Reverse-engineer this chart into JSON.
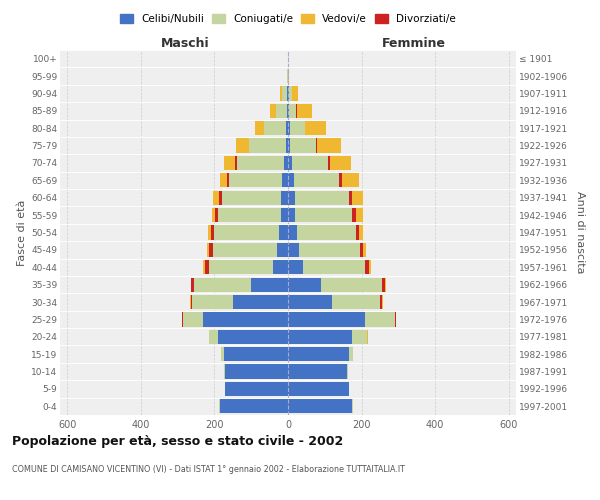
{
  "age_groups": [
    "0-4",
    "5-9",
    "10-14",
    "15-19",
    "20-24",
    "25-29",
    "30-34",
    "35-39",
    "40-44",
    "45-49",
    "50-54",
    "55-59",
    "60-64",
    "65-69",
    "70-74",
    "75-79",
    "80-84",
    "85-89",
    "90-94",
    "95-99",
    "100+"
  ],
  "birth_years": [
    "1997-2001",
    "1992-1996",
    "1987-1991",
    "1982-1986",
    "1977-1981",
    "1972-1976",
    "1967-1971",
    "1962-1966",
    "1957-1961",
    "1952-1956",
    "1947-1951",
    "1942-1946",
    "1937-1941",
    "1932-1936",
    "1927-1931",
    "1922-1926",
    "1917-1921",
    "1912-1916",
    "1907-1911",
    "1902-1906",
    "≤ 1901"
  ],
  "males_celibe": [
    185,
    170,
    170,
    175,
    190,
    230,
    150,
    100,
    40,
    30,
    25,
    20,
    20,
    15,
    10,
    5,
    5,
    3,
    2,
    0,
    0
  ],
  "males_coniugato": [
    2,
    2,
    3,
    8,
    25,
    55,
    110,
    155,
    175,
    175,
    175,
    170,
    160,
    145,
    130,
    100,
    60,
    30,
    15,
    2,
    0
  ],
  "males_vedovo": [
    0,
    0,
    0,
    0,
    0,
    1,
    1,
    2,
    3,
    5,
    8,
    10,
    15,
    20,
    30,
    35,
    25,
    15,
    6,
    1,
    0
  ],
  "males_divorziato": [
    0,
    0,
    0,
    0,
    1,
    3,
    5,
    8,
    12,
    10,
    10,
    8,
    8,
    5,
    5,
    2,
    1,
    0,
    0,
    0,
    0
  ],
  "females_nubile": [
    175,
    165,
    160,
    165,
    175,
    210,
    120,
    90,
    40,
    30,
    25,
    20,
    20,
    15,
    10,
    5,
    5,
    3,
    2,
    0,
    0
  ],
  "females_coniugata": [
    2,
    2,
    3,
    12,
    40,
    80,
    130,
    165,
    170,
    165,
    160,
    155,
    145,
    125,
    100,
    70,
    40,
    20,
    10,
    1,
    0
  ],
  "females_vedova": [
    0,
    0,
    0,
    0,
    1,
    1,
    2,
    3,
    5,
    8,
    12,
    20,
    30,
    45,
    55,
    65,
    55,
    40,
    16,
    3,
    1
  ],
  "females_divorziata": [
    0,
    0,
    0,
    0,
    1,
    3,
    5,
    8,
    10,
    8,
    8,
    10,
    8,
    8,
    5,
    5,
    2,
    1,
    0,
    0,
    0
  ],
  "colors": {
    "celibe": "#4472C4",
    "coniugato": "#C5D5A0",
    "vedovo": "#F0B830",
    "divorziato": "#CC2222"
  },
  "xlim": 620,
  "title": "Popolazione per età, sesso e stato civile - 2002",
  "subtitle": "COMUNE DI CAMISANO VICENTINO (VI) - Dati ISTAT 1° gennaio 2002 - Elaborazione TUTTAITALIA.IT",
  "ylabel_left": "Fasce di età",
  "ylabel_right": "Anni di nascita",
  "xlabel_maschi": "Maschi",
  "xlabel_femmine": "Femmine",
  "legend_labels": [
    "Celibi/Nubili",
    "Coniugati/e",
    "Vedovi/e",
    "Divorziati/e"
  ],
  "background_color": "#FFFFFF",
  "plot_bg_color": "#EFEFEF",
  "grid_color": "#CCCCCC"
}
